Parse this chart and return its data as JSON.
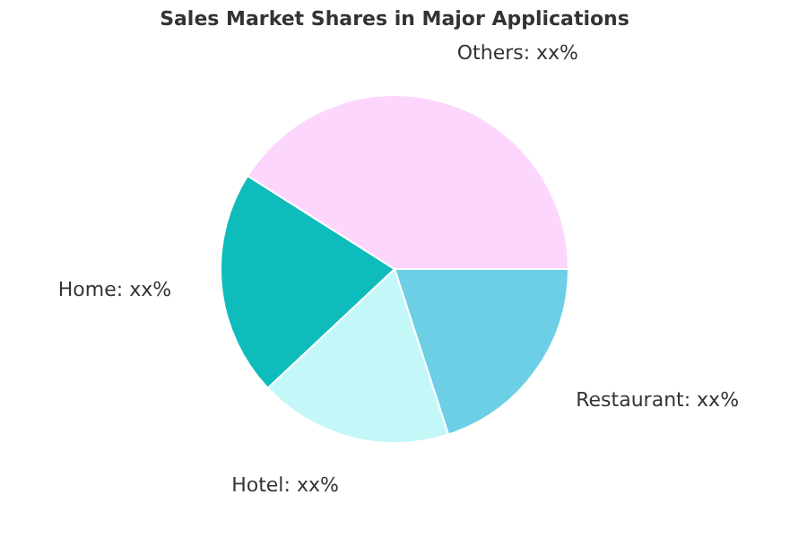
{
  "chart_data": {
    "type": "pie",
    "title": "Sales Market Shares in Major Applications",
    "categories": [
      "Restaurant",
      "Hotel",
      "Home",
      "Others"
    ],
    "values": [
      20,
      18,
      21,
      41
    ],
    "colors": [
      "#6dcfe6",
      "#c4f7f7",
      "#0fbcbc",
      "#fcd6fc"
    ],
    "value_labels": [
      "xx%",
      "xx%",
      "xx%",
      "xx%"
    ],
    "legend": false
  }
}
